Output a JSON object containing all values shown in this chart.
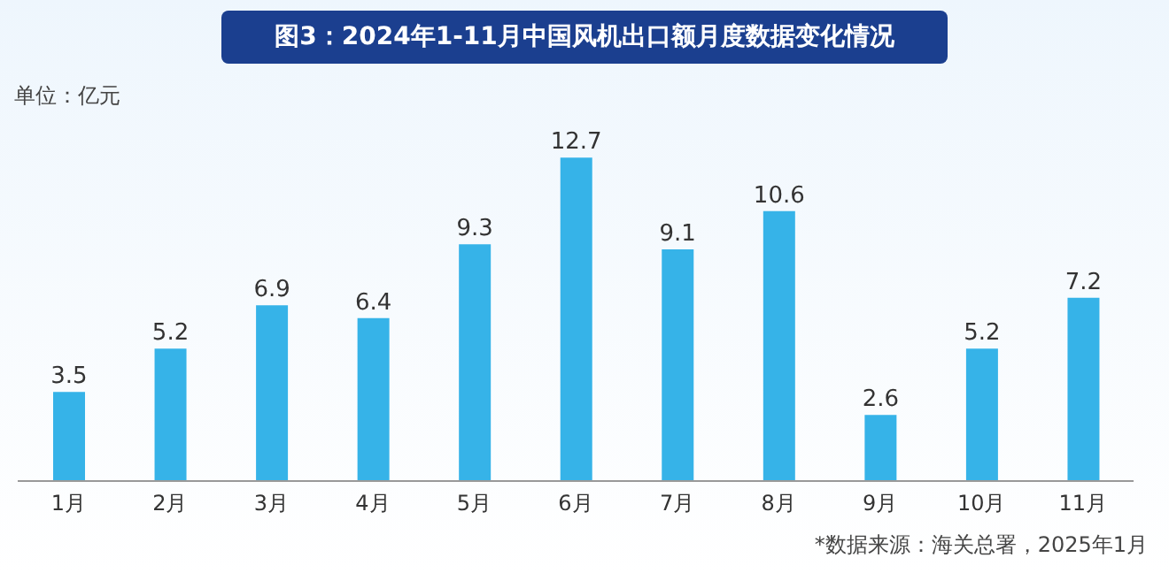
{
  "chart_data": {
    "type": "bar",
    "title": "图3：2024年1-11月中国风机出口额月度数据变化情况",
    "ylabel": "单位：亿元",
    "categories": [
      "1月",
      "2月",
      "3月",
      "4月",
      "5月",
      "6月",
      "7月",
      "8月",
      "9月",
      "10月",
      "11月"
    ],
    "values": [
      3.5,
      5.2,
      6.9,
      6.4,
      9.3,
      12.7,
      9.1,
      10.6,
      2.6,
      5.2,
      7.2
    ],
    "color": "#36b3e8",
    "data_labels": true,
    "annotations": [
      "*数据来源：海关总署，2025年1月"
    ]
  }
}
